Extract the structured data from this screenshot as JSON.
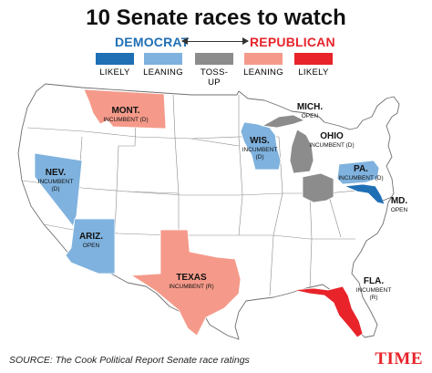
{
  "title": "10 Senate races to watch",
  "scale": {
    "left_label": "DEMOCRAT",
    "right_label": "REPUBLICAN",
    "levels": [
      {
        "key": "likely_d",
        "label": "LIKELY",
        "color": "#1f6fb5"
      },
      {
        "key": "leaning_d",
        "label": "LEANING",
        "color": "#7fb2de"
      },
      {
        "key": "tossup",
        "label": "TOSS-UP",
        "color": "#8c8c8c"
      },
      {
        "key": "leaning_r",
        "label": "LEANING",
        "color": "#f59a8a"
      },
      {
        "key": "likely_r",
        "label": "LIKELY",
        "color": "#e8232a"
      }
    ]
  },
  "states": {
    "mont": {
      "name": "MONT.",
      "note": "INCUMBENT (D)",
      "rating": "leaning_r"
    },
    "nev": {
      "name": "NEV.",
      "note1": "INCUMBENT",
      "note2": "(D)",
      "rating": "leaning_d"
    },
    "ariz": {
      "name": "ARIZ.",
      "note": "OPEN",
      "rating": "leaning_d"
    },
    "texas": {
      "name": "TEXAS",
      "note": "INCUMBENT (R)",
      "rating": "leaning_r"
    },
    "wis": {
      "name": "WIS.",
      "note1": "INCUMBENT",
      "note2": "(D)",
      "rating": "leaning_d"
    },
    "mich": {
      "name": "MICH.",
      "note": "OPEN",
      "rating": "tossup"
    },
    "ohio": {
      "name": "OHIO",
      "note": "INCUMBENT (D)",
      "rating": "tossup"
    },
    "pa": {
      "name": "PA.",
      "note": "INCUMBENT (D)",
      "rating": "leaning_d"
    },
    "md": {
      "name": "MD.",
      "note": "OPEN",
      "rating": "likely_d"
    },
    "fla": {
      "name": "FLA.",
      "note1": "INCUMBENT",
      "note2": "(R)",
      "rating": "likely_r"
    }
  },
  "source": "SOURCE: The Cook Political Report Senate race ratings",
  "logo": "TIME"
}
